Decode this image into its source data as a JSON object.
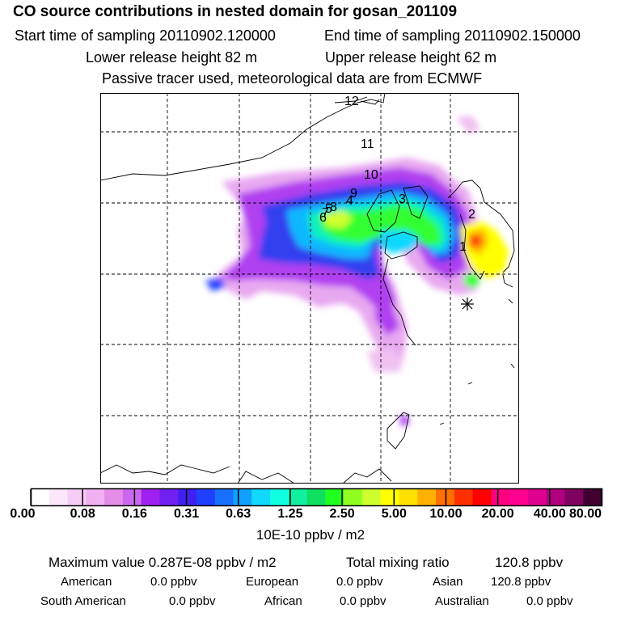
{
  "header": {
    "title": "CO  source contributions in nested domain for gosan_201109",
    "start_label": "Start time of sampling 20110902.120000",
    "end_label": "End time of sampling 20110902.150000",
    "lower_label": "Lower release height   82 m",
    "upper_label": "Upper release height   62 m",
    "note": "Passive tracer used, meteorological data are from ECMWF"
  },
  "map": {
    "receptor_marker": "asterisk-icon",
    "labels": [
      "1",
      "2",
      "3",
      "4",
      "5",
      "6",
      "7",
      "8",
      "9",
      "10",
      "11",
      "12"
    ]
  },
  "colorbar": {
    "colors": [
      "#ffffff",
      "#fbe6fb",
      "#f6cdf6",
      "#f0b0f0",
      "#e48ce8",
      "#cc66ee",
      "#a020f0",
      "#7020f0",
      "#4020f0",
      "#2040ff",
      "#1870ff",
      "#10a0ff",
      "#10d8ff",
      "#10ffe0",
      "#10f0a0",
      "#10e060",
      "#20ff20",
      "#90ff20",
      "#d0ff30",
      "#ffff00",
      "#ffe000",
      "#ffb000",
      "#ff7000",
      "#ff3000",
      "#ff0000",
      "#ff0080",
      "#ff0090",
      "#e00090",
      "#b00080",
      "#800060",
      "#400030"
    ],
    "ticks": [
      "0.00",
      "0.08",
      "0.16",
      "0.31",
      "0.63",
      "1.25",
      "2.50",
      "5.00",
      "10.00",
      "20.00",
      "40.00",
      "80.00"
    ],
    "units": "10E-10 ppbv / m2"
  },
  "stats": {
    "max_label": "Maximum value  0.287E-08 ppbv / m2",
    "total_label": "Total mixing ratio",
    "total_value": "120.8 ppbv",
    "american_label": "American",
    "american_value": "0.0 ppbv",
    "european_label": "European",
    "european_value": "0.0 ppbv",
    "asian_label": "Asian",
    "asian_value": "120.8 ppbv",
    "south_american_label": "South American",
    "south_american_value": "0.0 ppbv",
    "african_label": "African",
    "african_value": "0.0 ppbv",
    "australian_label": "Australian",
    "australian_value": "0.0 ppbv"
  }
}
